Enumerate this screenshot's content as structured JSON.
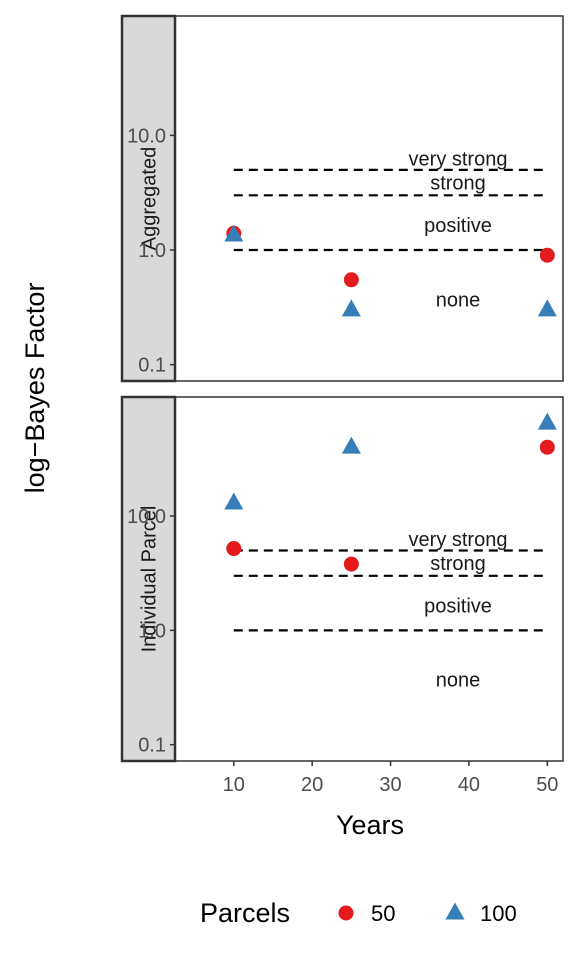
{
  "chart_data": {
    "type": "scatter",
    "xlabel": "Years",
    "ylabel": "log−Bayes Factor",
    "y_scale": "log",
    "ylim": [
      0.072,
      110
    ],
    "xlim": [
      2.5,
      52
    ],
    "x_ticks": [
      10,
      20,
      30,
      40,
      50
    ],
    "x_tick_labels": [
      "10",
      "20",
      "30",
      "40",
      "50"
    ],
    "y_ticks": [
      0.1,
      1.0,
      10.0
    ],
    "y_tick_labels": [
      "0.1",
      "1.0",
      "10.0"
    ],
    "grid": false,
    "legend": {
      "title": "Parcels",
      "placement": "bottom",
      "entries": [
        {
          "label": "50",
          "color": "#E41A1C",
          "shape": "circle"
        },
        {
          "label": "100",
          "color": "#377EB8",
          "shape": "triangle"
        }
      ]
    },
    "reference_lines": [
      {
        "y": 5.0,
        "style": "dashed"
      },
      {
        "y": 3.0,
        "style": "dashed"
      },
      {
        "y": 1.0,
        "style": "dashed"
      }
    ],
    "band_labels": [
      {
        "text": "very strong",
        "y": 6.3
      },
      {
        "text": "strong",
        "y": 3.9
      },
      {
        "text": "positive",
        "y": 1.65
      },
      {
        "text": "none",
        "y": 0.37
      }
    ],
    "panels": [
      {
        "strip": "Aggregated",
        "series": [
          {
            "name": "50",
            "x": [
              10,
              25,
              50
            ],
            "y": [
              1.4,
              0.55,
              0.9
            ]
          },
          {
            "name": "100",
            "x": [
              10,
              25,
              50
            ],
            "y": [
              1.35,
              0.3,
              0.3
            ]
          }
        ]
      },
      {
        "strip": "Individual Parcel",
        "series": [
          {
            "name": "50",
            "x": [
              10,
              25,
              50
            ],
            "y": [
              5.2,
              3.8,
              40
            ]
          },
          {
            "name": "100",
            "x": [
              10,
              25,
              50
            ],
            "y": [
              13,
              40,
              65
            ]
          }
        ]
      }
    ]
  }
}
